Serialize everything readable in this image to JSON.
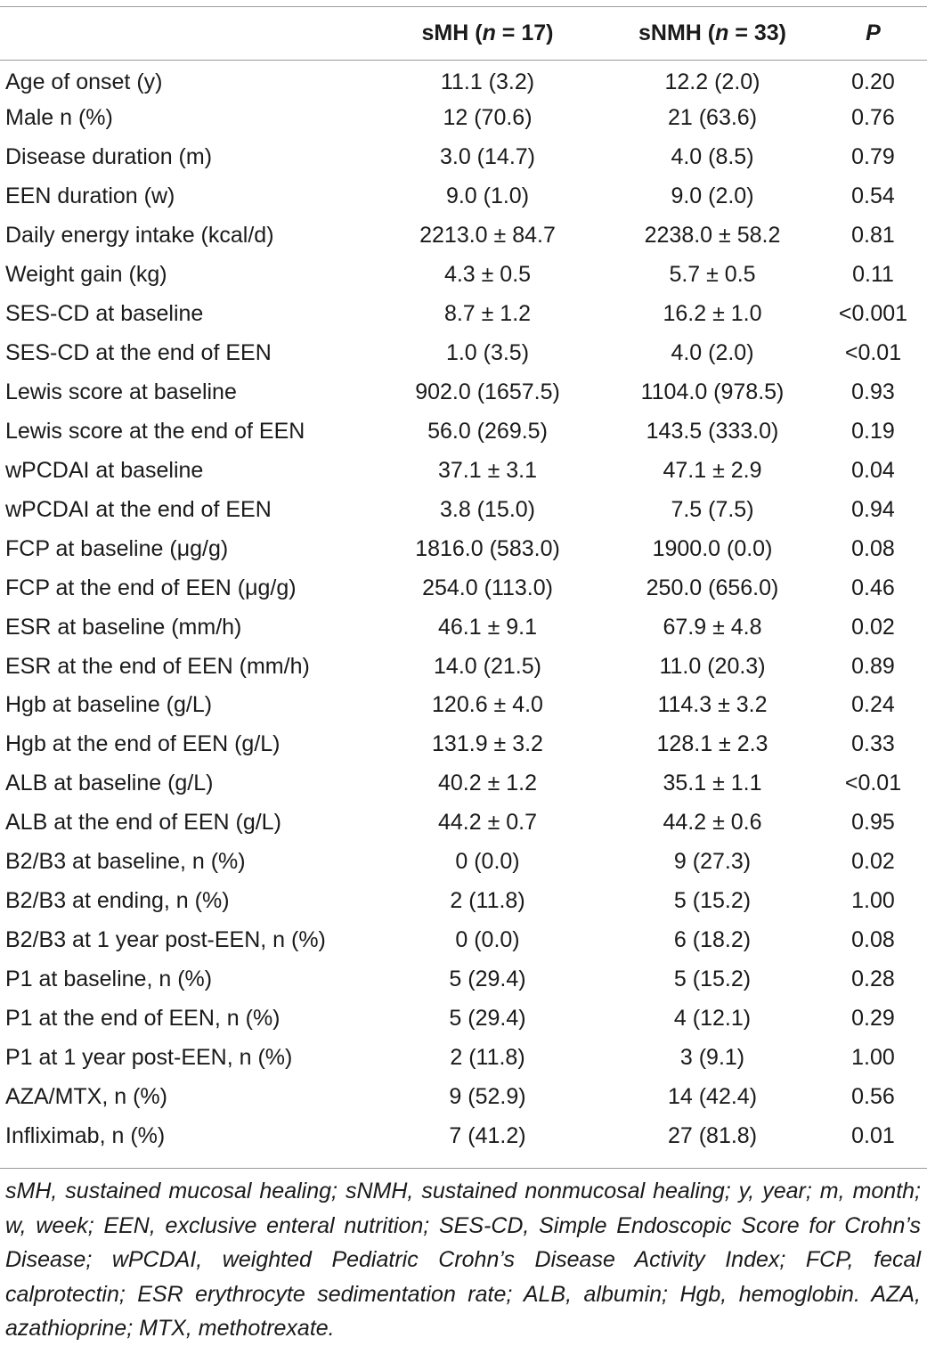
{
  "table": {
    "header": {
      "col0": "",
      "col1_prefix": "sMH (",
      "col1_n": "n",
      "col1_suffix": " = 17)",
      "col2_prefix": "sNMH (",
      "col2_n": "n",
      "col2_suffix": " = 33)",
      "col3": "P"
    },
    "rows": [
      [
        "Age of onset (y)",
        "11.1 (3.2)",
        "12.2 (2.0)",
        "0.20"
      ],
      [
        "Male n (%)",
        "12 (70.6)",
        "21 (63.6)",
        "0.76"
      ],
      [
        "Disease duration (m)",
        "3.0 (14.7)",
        "4.0 (8.5)",
        "0.79"
      ],
      [
        "EEN duration (w)",
        "9.0 (1.0)",
        "9.0 (2.0)",
        "0.54"
      ],
      [
        "Daily energy intake (kcal/d)",
        "2213.0 ± 84.7",
        "2238.0 ± 58.2",
        "0.81"
      ],
      [
        "Weight gain (kg)",
        "4.3 ± 0.5",
        "5.7 ± 0.5",
        "0.11"
      ],
      [
        "SES-CD at baseline",
        "8.7 ± 1.2",
        "16.2 ± 1.0",
        "<0.001"
      ],
      [
        "SES-CD at the end of EEN",
        "1.0 (3.5)",
        "4.0 (2.0)",
        "<0.01"
      ],
      [
        "Lewis score at baseline",
        "902.0 (1657.5)",
        "1104.0 (978.5)",
        "0.93"
      ],
      [
        "Lewis score at the end of EEN",
        "56.0 (269.5)",
        "143.5 (333.0)",
        "0.19"
      ],
      [
        "wPCDAI at baseline",
        "37.1 ± 3.1",
        "47.1 ± 2.9",
        "0.04"
      ],
      [
        "wPCDAI at the end of EEN",
        "3.8 (15.0)",
        "7.5 (7.5)",
        "0.94"
      ],
      [
        "FCP at baseline (μg/g)",
        "1816.0 (583.0)",
        "1900.0 (0.0)",
        "0.08"
      ],
      [
        "FCP at the end of EEN (μg/g)",
        "254.0 (113.0)",
        "250.0 (656.0)",
        "0.46"
      ],
      [
        "ESR at baseline (mm/h)",
        "46.1 ± 9.1",
        "67.9 ± 4.8",
        "0.02"
      ],
      [
        "ESR at the end of EEN (mm/h)",
        "14.0 (21.5)",
        "11.0 (20.3)",
        "0.89"
      ],
      [
        "Hgb at baseline (g/L)",
        "120.6 ± 4.0",
        "114.3 ± 3.2",
        "0.24"
      ],
      [
        "Hgb at the end of EEN (g/L)",
        "131.9 ± 3.2",
        "128.1 ± 2.3",
        "0.33"
      ],
      [
        "ALB at baseline (g/L)",
        "40.2 ± 1.2",
        "35.1 ± 1.1",
        "<0.01"
      ],
      [
        "ALB at the end of EEN (g/L)",
        "44.2 ± 0.7",
        "44.2 ± 0.6",
        "0.95"
      ],
      [
        "B2/B3 at baseline, n (%)",
        "0 (0.0)",
        "9 (27.3)",
        "0.02"
      ],
      [
        "B2/B3 at ending, n (%)",
        "2 (11.8)",
        "5 (15.2)",
        "1.00"
      ],
      [
        "B2/B3 at 1 year post-EEN, n (%)",
        "0 (0.0)",
        "6 (18.2)",
        "0.08"
      ],
      [
        "P1 at baseline, n (%)",
        "5 (29.4)",
        "5 (15.2)",
        "0.28"
      ],
      [
        "P1 at the end of EEN, n (%)",
        "5 (29.4)",
        "4 (12.1)",
        "0.29"
      ],
      [
        "P1 at 1 year post-EEN, n (%)",
        "2 (11.8)",
        "3 (9.1)",
        "1.00"
      ],
      [
        "AZA/MTX, n (%)",
        "9 (52.9)",
        "14 (42.4)",
        "0.56"
      ],
      [
        "Infliximab, n (%)",
        "7 (41.2)",
        "27 (81.8)",
        "0.01"
      ]
    ]
  },
  "footnote": "sMH, sustained mucosal healing; sNMH, sustained nonmucosal healing; y, year; m, month; w, week; EEN, exclusive enteral nutrition; SES-CD, Simple Endoscopic Score for Crohn’s Disease; wPCDAI, weighted Pediatric Crohn’s Disease Activity Index; FCP, fecal calprotectin; ESR erythrocyte sedimentation rate; ALB, albumin; Hgb, hemoglobin. AZA, azathioprine; MTX, methotrexate."
}
